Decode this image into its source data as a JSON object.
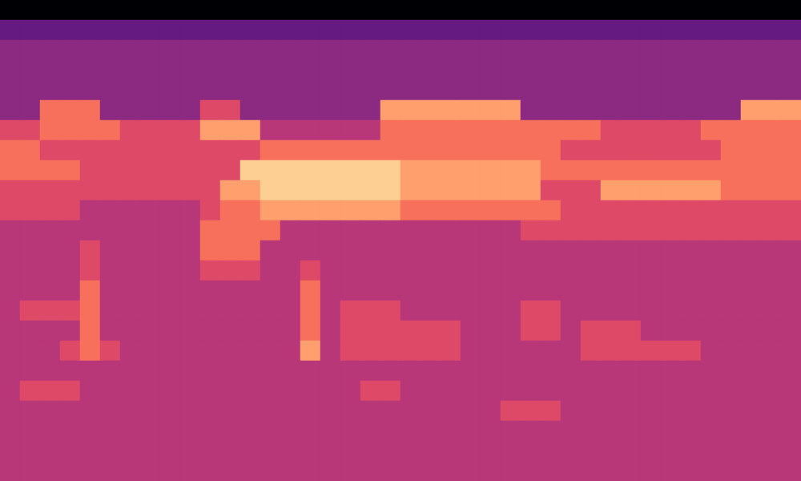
{
  "chart_data": {
    "type": "heatmap",
    "tick_labels": false,
    "zlim": [
      0,
      10
    ],
    "cells": [
      [
        0,
        0,
        0,
        0,
        0,
        0,
        0,
        0,
        0,
        0,
        0,
        0,
        0,
        0,
        0,
        0,
        0,
        0,
        0,
        0,
        0,
        0,
        0,
        0,
        0,
        0,
        0,
        0,
        0,
        0,
        0,
        0,
        0,
        0,
        0,
        0,
        0,
        0,
        0,
        0
      ],
      [
        3,
        3,
        3,
        3,
        3,
        3,
        3,
        3,
        3,
        3,
        3,
        3,
        3,
        3,
        3,
        3,
        3,
        3,
        3,
        3,
        3,
        3,
        3,
        3,
        3,
        3,
        3,
        3,
        3,
        3,
        3,
        3,
        3,
        3,
        3,
        3,
        3,
        3,
        3,
        3
      ],
      [
        4,
        4,
        4,
        4,
        4,
        4,
        4,
        4,
        4,
        4,
        4,
        4,
        4,
        4,
        4,
        4,
        4,
        4,
        4,
        4,
        4,
        4,
        4,
        4,
        4,
        4,
        4,
        4,
        4,
        4,
        4,
        4,
        4,
        4,
        4,
        4,
        4,
        4,
        4,
        4
      ],
      [
        4,
        4,
        4,
        4,
        4,
        4,
        4,
        4,
        4,
        4,
        4,
        4,
        4,
        4,
        4,
        4,
        4,
        4,
        4,
        4,
        4,
        4,
        4,
        4,
        4,
        4,
        4,
        4,
        4,
        4,
        4,
        4,
        4,
        4,
        4,
        4,
        4,
        4,
        4,
        4
      ],
      [
        4,
        4,
        4,
        4,
        4,
        4,
        4,
        4,
        4,
        4,
        4,
        4,
        4,
        4,
        4,
        4,
        4,
        4,
        4,
        4,
        4,
        4,
        4,
        4,
        4,
        4,
        4,
        4,
        4,
        4,
        4,
        4,
        4,
        4,
        4,
        4,
        4,
        4,
        4,
        4
      ],
      [
        4,
        4,
        7,
        7,
        7,
        4,
        4,
        4,
        4,
        4,
        6,
        6,
        4,
        4,
        4,
        4,
        4,
        4,
        4,
        8,
        8,
        8,
        8,
        8,
        8,
        8,
        4,
        4,
        4,
        4,
        4,
        4,
        4,
        4,
        4,
        4,
        4,
        8,
        8,
        8
      ],
      [
        6,
        6,
        7,
        7,
        7,
        7,
        6,
        6,
        6,
        6,
        8,
        8,
        8,
        5,
        5,
        5,
        5,
        5,
        5,
        7,
        7,
        7,
        7,
        7,
        7,
        7,
        7,
        7,
        7,
        7,
        6,
        6,
        6,
        6,
        6,
        7,
        7,
        7,
        7,
        7
      ],
      [
        7,
        7,
        6,
        6,
        6,
        6,
        6,
        6,
        6,
        6,
        6,
        6,
        6,
        7,
        7,
        7,
        7,
        7,
        7,
        7,
        7,
        7,
        7,
        7,
        7,
        7,
        7,
        7,
        6,
        6,
        6,
        6,
        6,
        6,
        6,
        6,
        7,
        7,
        7,
        7
      ],
      [
        7,
        7,
        7,
        7,
        6,
        6,
        6,
        6,
        6,
        6,
        6,
        6,
        9,
        9,
        9,
        9,
        9,
        9,
        9,
        9,
        8,
        8,
        8,
        8,
        8,
        8,
        8,
        7,
        7,
        7,
        7,
        7,
        7,
        7,
        7,
        7,
        7,
        7,
        7,
        7
      ],
      [
        6,
        6,
        6,
        6,
        6,
        6,
        6,
        6,
        6,
        6,
        6,
        8,
        8,
        9,
        9,
        9,
        9,
        9,
        9,
        9,
        8,
        8,
        8,
        8,
        8,
        8,
        8,
        6,
        6,
        6,
        8,
        8,
        8,
        8,
        8,
        8,
        7,
        7,
        7,
        7
      ],
      [
        6,
        6,
        6,
        6,
        5,
        5,
        5,
        5,
        5,
        5,
        6,
        7,
        7,
        8,
        8,
        8,
        8,
        8,
        8,
        8,
        7,
        7,
        7,
        7,
        7,
        7,
        7,
        7,
        6,
        6,
        6,
        6,
        6,
        6,
        6,
        6,
        6,
        6,
        6,
        6
      ],
      [
        5,
        5,
        5,
        5,
        5,
        5,
        5,
        5,
        5,
        5,
        7,
        7,
        7,
        7,
        5,
        5,
        5,
        5,
        5,
        5,
        5,
        5,
        5,
        5,
        5,
        5,
        6,
        6,
        6,
        6,
        6,
        6,
        6,
        6,
        6,
        6,
        6,
        6,
        6,
        6
      ],
      [
        5,
        5,
        5,
        5,
        6,
        5,
        5,
        5,
        5,
        5,
        7,
        7,
        7,
        5,
        5,
        5,
        5,
        5,
        5,
        5,
        5,
        5,
        5,
        5,
        5,
        5,
        5,
        5,
        5,
        5,
        5,
        5,
        5,
        5,
        5,
        5,
        5,
        5,
        5,
        5
      ],
      [
        5,
        5,
        5,
        5,
        6,
        5,
        5,
        5,
        5,
        5,
        6,
        6,
        6,
        5,
        5,
        6,
        5,
        5,
        5,
        5,
        5,
        5,
        5,
        5,
        5,
        5,
        5,
        5,
        5,
        5,
        5,
        5,
        5,
        5,
        5,
        5,
        5,
        5,
        5,
        5
      ],
      [
        5,
        5,
        5,
        5,
        7,
        5,
        5,
        5,
        5,
        5,
        5,
        5,
        5,
        5,
        5,
        7,
        5,
        5,
        5,
        5,
        5,
        5,
        5,
        5,
        5,
        5,
        5,
        5,
        5,
        5,
        5,
        5,
        5,
        5,
        5,
        5,
        5,
        5,
        5,
        5
      ],
      [
        5,
        6,
        6,
        6,
        7,
        5,
        5,
        5,
        5,
        5,
        5,
        5,
        5,
        5,
        5,
        7,
        5,
        6,
        6,
        6,
        5,
        5,
        5,
        5,
        5,
        5,
        6,
        6,
        5,
        5,
        5,
        5,
        5,
        5,
        5,
        5,
        5,
        5,
        5,
        5
      ],
      [
        5,
        5,
        5,
        5,
        7,
        5,
        5,
        5,
        5,
        5,
        5,
        5,
        5,
        5,
        5,
        7,
        5,
        6,
        6,
        6,
        6,
        6,
        6,
        5,
        5,
        5,
        6,
        6,
        5,
        6,
        6,
        6,
        5,
        5,
        5,
        5,
        5,
        5,
        5,
        5
      ],
      [
        5,
        5,
        5,
        6,
        7,
        6,
        5,
        5,
        5,
        5,
        5,
        5,
        5,
        5,
        5,
        8,
        5,
        6,
        6,
        6,
        6,
        6,
        6,
        5,
        5,
        5,
        5,
        5,
        5,
        6,
        6,
        6,
        6,
        6,
        6,
        5,
        5,
        5,
        5,
        5
      ],
      [
        5,
        5,
        5,
        5,
        5,
        5,
        5,
        5,
        5,
        5,
        5,
        5,
        5,
        5,
        5,
        5,
        5,
        5,
        5,
        5,
        5,
        5,
        5,
        5,
        5,
        5,
        5,
        5,
        5,
        5,
        5,
        5,
        5,
        5,
        5,
        5,
        5,
        5,
        5,
        5
      ],
      [
        5,
        6,
        6,
        6,
        5,
        5,
        5,
        5,
        5,
        5,
        5,
        5,
        5,
        5,
        5,
        5,
        5,
        5,
        6,
        6,
        5,
        5,
        5,
        5,
        5,
        5,
        5,
        5,
        5,
        5,
        5,
        5,
        5,
        5,
        5,
        5,
        5,
        5,
        5,
        5
      ],
      [
        5,
        5,
        5,
        5,
        5,
        5,
        5,
        5,
        5,
        5,
        5,
        5,
        5,
        5,
        5,
        5,
        5,
        5,
        5,
        5,
        5,
        5,
        5,
        5,
        5,
        6,
        6,
        6,
        5,
        5,
        5,
        5,
        5,
        5,
        5,
        5,
        5,
        5,
        5,
        5
      ],
      [
        5,
        5,
        5,
        5,
        5,
        5,
        5,
        5,
        5,
        5,
        5,
        5,
        5,
        5,
        5,
        5,
        5,
        5,
        5,
        5,
        5,
        5,
        5,
        5,
        5,
        5,
        5,
        5,
        5,
        5,
        5,
        5,
        5,
        5,
        5,
        5,
        5,
        5,
        5,
        5
      ],
      [
        5,
        5,
        5,
        5,
        5,
        5,
        5,
        5,
        5,
        5,
        5,
        5,
        5,
        5,
        5,
        5,
        5,
        5,
        5,
        5,
        5,
        5,
        5,
        5,
        5,
        5,
        5,
        5,
        5,
        5,
        5,
        5,
        5,
        5,
        5,
        5,
        5,
        5,
        5,
        5
      ],
      [
        5,
        5,
        5,
        5,
        5,
        5,
        5,
        5,
        5,
        5,
        5,
        5,
        5,
        5,
        5,
        5,
        5,
        5,
        5,
        5,
        5,
        5,
        5,
        5,
        5,
        5,
        5,
        5,
        5,
        5,
        5,
        5,
        5,
        5,
        5,
        5,
        5,
        5,
        5,
        5
      ]
    ]
  }
}
